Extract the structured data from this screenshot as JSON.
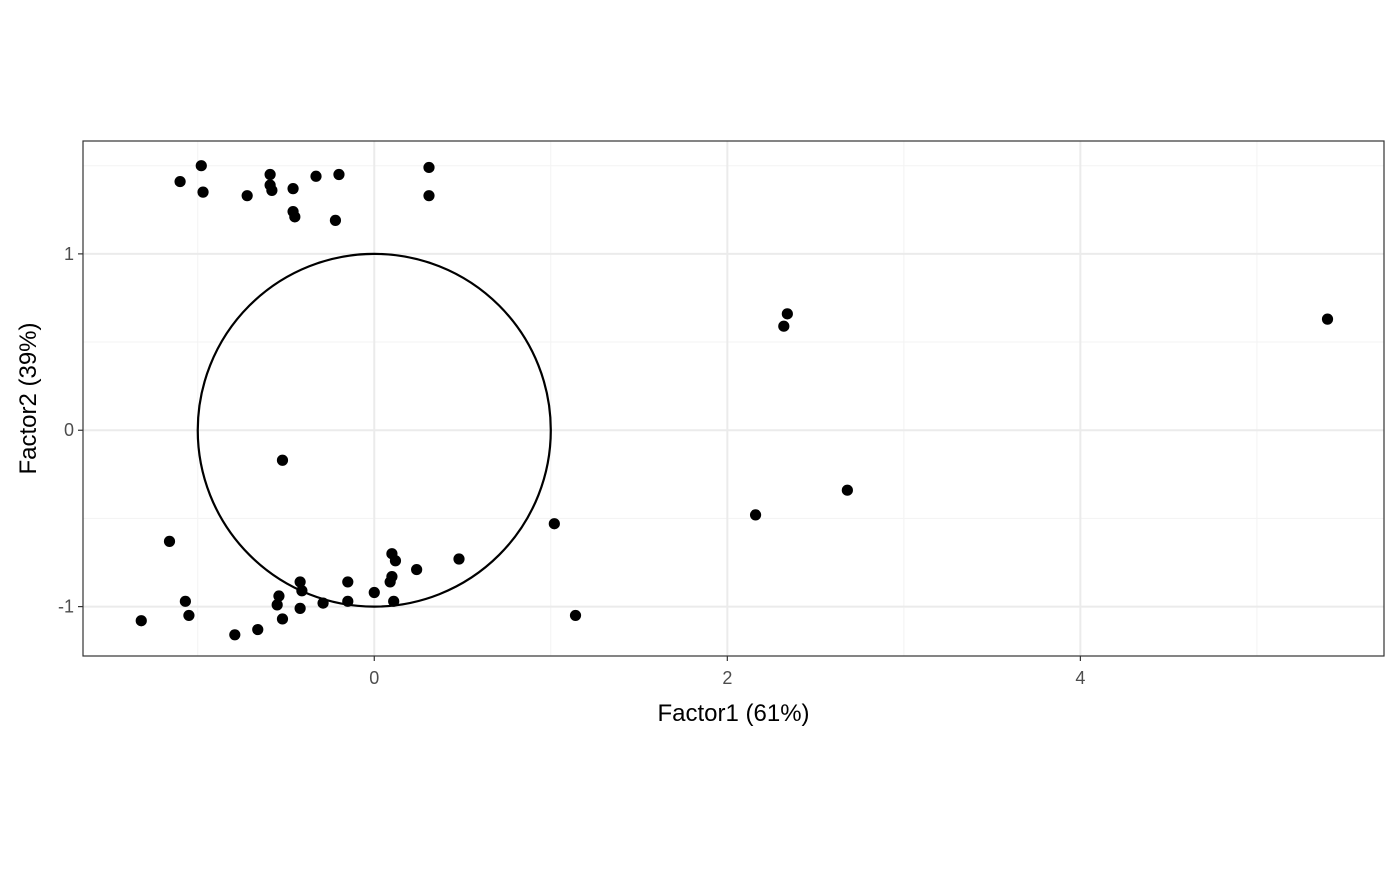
{
  "chart_data": {
    "type": "scatter",
    "title": "",
    "xlabel": "Factor1 (61%)",
    "ylabel": "Factor2 (39%)",
    "xlim": [
      -1.65,
      5.72
    ],
    "ylim": [
      -1.28,
      1.64
    ],
    "x_ticks": [
      0,
      2,
      4
    ],
    "x_tick_labels": [
      "0",
      "2",
      "4"
    ],
    "y_ticks": [
      -1,
      0,
      1
    ],
    "y_tick_labels": [
      "-1",
      "0",
      "1"
    ],
    "x_minor_ticks": [
      -1,
      1,
      3,
      5
    ],
    "y_minor_ticks": [
      -0.5,
      0.5,
      1.5
    ],
    "grid": true,
    "legend": "none",
    "circle": {
      "center": [
        0,
        0
      ],
      "radius": 1
    },
    "point_color": "#000000",
    "points": [
      {
        "x": -0.98,
        "y": 1.5
      },
      {
        "x": -1.1,
        "y": 1.41
      },
      {
        "x": -0.97,
        "y": 1.35
      },
      {
        "x": -0.72,
        "y": 1.33
      },
      {
        "x": -0.59,
        "y": 1.45
      },
      {
        "x": -0.59,
        "y": 1.39
      },
      {
        "x": -0.58,
        "y": 1.36
      },
      {
        "x": -0.46,
        "y": 1.37
      },
      {
        "x": -0.46,
        "y": 1.24
      },
      {
        "x": -0.45,
        "y": 1.21
      },
      {
        "x": -0.33,
        "y": 1.44
      },
      {
        "x": -0.2,
        "y": 1.45
      },
      {
        "x": -0.22,
        "y": 1.19
      },
      {
        "x": 0.31,
        "y": 1.49
      },
      {
        "x": 0.31,
        "y": 1.33
      },
      {
        "x": 2.34,
        "y": 0.66
      },
      {
        "x": 2.32,
        "y": 0.59
      },
      {
        "x": 5.4,
        "y": 0.63
      },
      {
        "x": -0.52,
        "y": -0.17
      },
      {
        "x": 2.68,
        "y": -0.34
      },
      {
        "x": 2.16,
        "y": -0.48
      },
      {
        "x": 1.02,
        "y": -0.53
      },
      {
        "x": -1.16,
        "y": -0.63
      },
      {
        "x": 0.1,
        "y": -0.7
      },
      {
        "x": 0.12,
        "y": -0.74
      },
      {
        "x": 0.48,
        "y": -0.73
      },
      {
        "x": 0.24,
        "y": -0.79
      },
      {
        "x": 0.1,
        "y": -0.83
      },
      {
        "x": 0.09,
        "y": -0.86
      },
      {
        "x": -0.15,
        "y": -0.86
      },
      {
        "x": -0.42,
        "y": -0.86
      },
      {
        "x": -0.41,
        "y": -0.91
      },
      {
        "x": 0.0,
        "y": -0.92
      },
      {
        "x": -0.54,
        "y": -0.94
      },
      {
        "x": -1.07,
        "y": -0.97
      },
      {
        "x": -0.15,
        "y": -0.97
      },
      {
        "x": 0.11,
        "y": -0.97
      },
      {
        "x": -0.29,
        "y": -0.98
      },
      {
        "x": -0.55,
        "y": -0.99
      },
      {
        "x": -0.42,
        "y": -1.01
      },
      {
        "x": -1.05,
        "y": -1.05
      },
      {
        "x": 1.14,
        "y": -1.05
      },
      {
        "x": -0.52,
        "y": -1.07
      },
      {
        "x": -1.32,
        "y": -1.08
      },
      {
        "x": -0.66,
        "y": -1.13
      },
      {
        "x": -0.79,
        "y": -1.16
      }
    ]
  }
}
